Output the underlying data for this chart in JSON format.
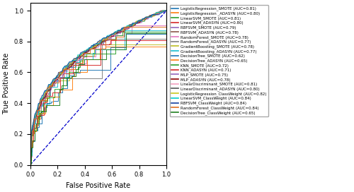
{
  "title": "",
  "xlabel": "False Positive Rate",
  "ylabel": "True Positive Rate",
  "models": [
    {
      "label": "LogisticRegression_SMOTE (AUC=0.81)",
      "color": "#1f77b4",
      "auc": 0.81,
      "smooth": false
    },
    {
      "label": "LogisticRegression _ADASYN (AUC=0.80)",
      "color": "#ff7f0e",
      "auc": 0.8,
      "smooth": false
    },
    {
      "label": "LinearSVM_SMOTE (AUC=0.81)",
      "color": "#2ca02c",
      "auc": 0.81,
      "smooth": false
    },
    {
      "label": "LinearSVM_ADASYN (AUC=0.80)",
      "color": "#d62728",
      "auc": 0.8,
      "smooth": false
    },
    {
      "label": "RBFSVM_SMOTE (AUC=0.79)",
      "color": "#9467bd",
      "auc": 0.79,
      "smooth": false
    },
    {
      "label": "RBFSVM_ADASYN (AUC=0.78)",
      "color": "#8c564b",
      "auc": 0.78,
      "smooth": false
    },
    {
      "label": "RandomForest_SMOTE (AUC=0.78)",
      "color": "#e377c2",
      "auc": 0.78,
      "smooth": true
    },
    {
      "label": "RandomForest_ADASYN (AUC=0.77)",
      "color": "#7f7f7f",
      "auc": 0.77,
      "smooth": true
    },
    {
      "label": "GradientBoosting_SMOTE (AUC=0.78)",
      "color": "#bcbd22",
      "auc": 0.78,
      "smooth": true
    },
    {
      "label": "GradientBoosting_ADASYN (AUC=0.77)",
      "color": "#17becf",
      "auc": 0.77,
      "smooth": true
    },
    {
      "label": "DecisionTree_SMOTE (AUC=0.62)",
      "color": "#1f77b4",
      "auc": 0.62,
      "smooth": true
    },
    {
      "label": "DecisionTree_ADASYN (AUC=0.65)",
      "color": "#ff7f0e",
      "auc": 0.65,
      "smooth": true
    },
    {
      "label": "KNN_SMOTE (AUC=0.72)",
      "color": "#2ca02c",
      "auc": 0.72,
      "smooth": true
    },
    {
      "label": "KNN_ADASYN (AUC=0.71)",
      "color": "#d62728",
      "auc": 0.71,
      "smooth": true
    },
    {
      "label": "MLP_SMOTE (AUC=0.75)",
      "color": "#9467bd",
      "auc": 0.75,
      "smooth": false
    },
    {
      "label": "MLP_ADASYN (AUC=0.78)",
      "color": "#8b0000",
      "auc": 0.78,
      "smooth": false
    },
    {
      "label": "LinearDiscriminant_SMOTE (AUC=0.81)",
      "color": "#f4a0c0",
      "auc": 0.81,
      "smooth": false
    },
    {
      "label": "LinearDiscriminant_ADASYN (AUC=0.80)",
      "color": "#555555",
      "auc": 0.8,
      "smooth": false
    },
    {
      "label": "LogisticRegression_ClassWeight (AUC=0.82)",
      "color": "#c8c820",
      "auc": 0.82,
      "smooth": false
    },
    {
      "label": "LinearSVM_ClassWeight (AUC=0.84)",
      "color": "#00cccc",
      "auc": 0.84,
      "smooth": false
    },
    {
      "label": "RBFSVM_ClassWeight (AUC=0.84)",
      "color": "#1540a0",
      "auc": 0.84,
      "smooth": false
    },
    {
      "label": "RandomForest_ClassWeight (AUC=0.84)",
      "color": "#e07020",
      "auc": 0.84,
      "smooth": true
    },
    {
      "label": "DecisionTree_ClassWeight (AUC=0.65)",
      "color": "#208020",
      "auc": 0.65,
      "smooth": true
    }
  ],
  "diagonal_color": "#0000cc",
  "xlim": [
    0.0,
    1.0
  ],
  "ylim": [
    0.0,
    1.05
  ]
}
